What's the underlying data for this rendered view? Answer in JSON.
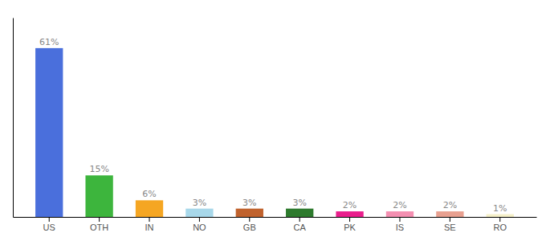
{
  "chart_data": {
    "type": "bar",
    "categories": [
      "US",
      "OTH",
      "IN",
      "NO",
      "GB",
      "CA",
      "PK",
      "IS",
      "SE",
      "RO"
    ],
    "values": [
      61,
      15,
      6,
      3,
      3,
      3,
      2,
      2,
      2,
      1
    ],
    "value_labels": [
      "61%",
      "15%",
      "6%",
      "3%",
      "3%",
      "3%",
      "2%",
      "2%",
      "2%",
      "1%"
    ],
    "colors": [
      "#4a6fdc",
      "#3db53d",
      "#f5a623",
      "#a8d8ea",
      "#c0622d",
      "#2d7a2d",
      "#e91e8c",
      "#f48fb1",
      "#e8a090",
      "#f5f0c8"
    ],
    "ylim": [
      0,
      72
    ],
    "grid": false,
    "data_labels": true,
    "tick_labels": "x"
  }
}
